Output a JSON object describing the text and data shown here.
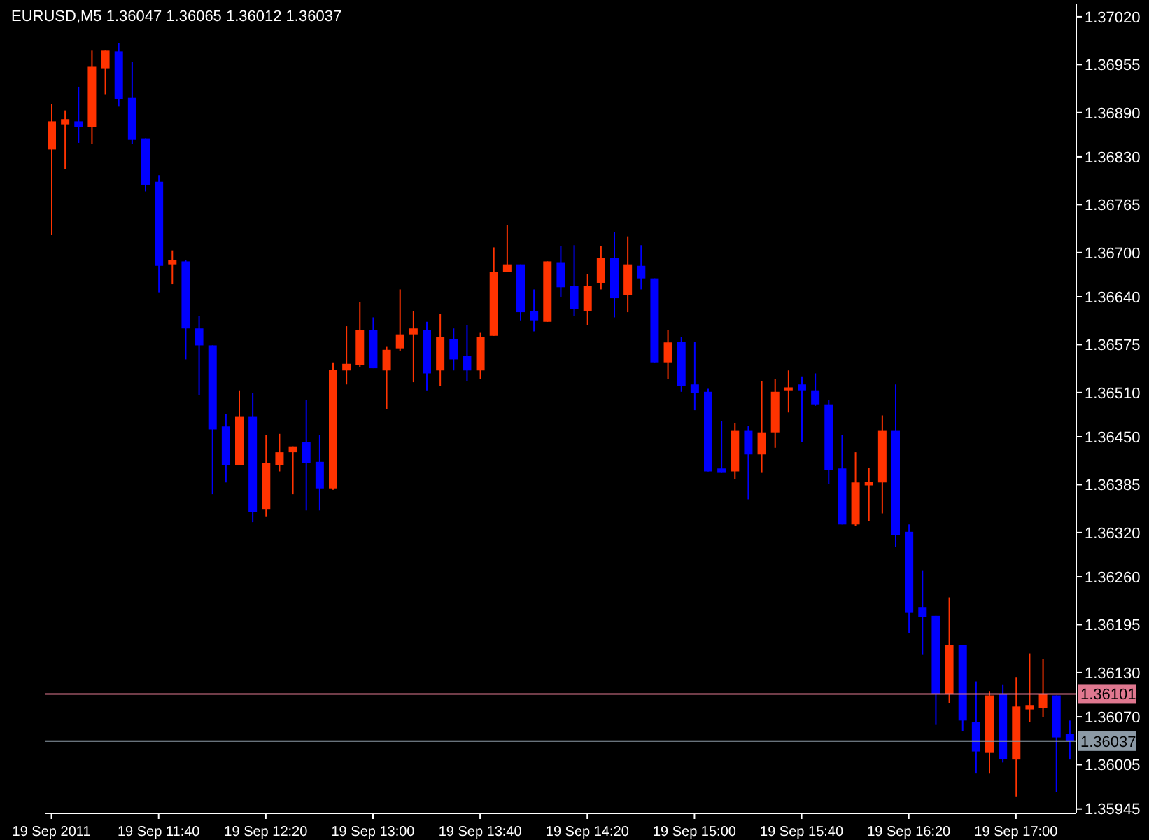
{
  "chart_data": {
    "type": "candlestick",
    "title": "EURUSD,M5 1.36047 1.36065 1.36012 1.36037",
    "categories": [
      "19 Sep 2011",
      null,
      null,
      null,
      null,
      null,
      null,
      null,
      "19 Sep 11:40",
      null,
      null,
      null,
      null,
      null,
      null,
      null,
      "19 Sep 12:20",
      null,
      null,
      null,
      null,
      null,
      null,
      null,
      "19 Sep 13:00",
      null,
      null,
      null,
      null,
      null,
      null,
      null,
      "19 Sep 13:40",
      null,
      null,
      null,
      null,
      null,
      null,
      null,
      "19 Sep 14:20",
      null,
      null,
      null,
      null,
      null,
      null,
      null,
      "19 Sep 15:00",
      null,
      null,
      null,
      null,
      null,
      null,
      null,
      "19 Sep 15:40",
      null,
      null,
      null,
      null,
      null,
      null,
      null,
      "19 Sep 16:20",
      null,
      null,
      null,
      null,
      null,
      null,
      null,
      "19 Sep 17:00",
      null,
      null,
      null,
      null
    ],
    "ohlc": [
      [
        1.3684,
        1.36902,
        1.36724,
        1.36878
      ],
      [
        1.36874,
        1.36893,
        1.36813,
        1.36881
      ],
      [
        1.36878,
        1.36925,
        1.36849,
        1.3687
      ],
      [
        1.3687,
        1.36974,
        1.36847,
        1.36952
      ],
      [
        1.3695,
        1.36974,
        1.36914,
        1.36974
      ],
      [
        1.36973,
        1.36984,
        1.36898,
        1.36908
      ],
      [
        1.3691,
        1.36959,
        1.36847,
        1.36853
      ],
      [
        1.36855,
        1.36855,
        1.36783,
        1.36792
      ],
      [
        1.36796,
        1.36805,
        1.36646,
        1.36682
      ],
      [
        1.36684,
        1.36703,
        1.36657,
        1.3669
      ],
      [
        1.36688,
        1.3669,
        1.36555,
        1.36597
      ],
      [
        1.36597,
        1.36614,
        1.36507,
        1.36574
      ],
      [
        1.36574,
        1.36574,
        1.36372,
        1.3646
      ],
      [
        1.36464,
        1.36481,
        1.36388,
        1.36412
      ],
      [
        1.36412,
        1.36513,
        1.36412,
        1.36477
      ],
      [
        1.36477,
        1.36509,
        1.36334,
        1.36348
      ],
      [
        1.36352,
        1.36452,
        1.36342,
        1.36414
      ],
      [
        1.36412,
        1.36454,
        1.36403,
        1.36429
      ],
      [
        1.36429,
        1.36437,
        1.36372,
        1.36437
      ],
      [
        1.36443,
        1.365,
        1.3635,
        1.36414
      ],
      [
        1.36416,
        1.36452,
        1.3635,
        1.3638
      ],
      [
        1.3638,
        1.36551,
        1.36378,
        1.36541
      ],
      [
        1.3654,
        1.366,
        1.36521,
        1.36549
      ],
      [
        1.36547,
        1.36633,
        1.36545,
        1.36595
      ],
      [
        1.36595,
        1.36612,
        1.36543,
        1.36543
      ],
      [
        1.3654,
        1.36572,
        1.36488,
        1.36568
      ],
      [
        1.3657,
        1.3665,
        1.36566,
        1.36589
      ],
      [
        1.36589,
        1.36621,
        1.36524,
        1.36597
      ],
      [
        1.36595,
        1.36606,
        1.36513,
        1.36536
      ],
      [
        1.3654,
        1.36617,
        1.36519,
        1.36585
      ],
      [
        1.36583,
        1.36597,
        1.3654,
        1.36555
      ],
      [
        1.3656,
        1.36602,
        1.36526,
        1.3654
      ],
      [
        1.3654,
        1.36591,
        1.36528,
        1.36585
      ],
      [
        1.36587,
        1.36707,
        1.36587,
        1.36674
      ],
      [
        1.36674,
        1.36737,
        1.36674,
        1.36684
      ],
      [
        1.36684,
        1.36684,
        1.36608,
        1.36619
      ],
      [
        1.36621,
        1.3665,
        1.36593,
        1.36608
      ],
      [
        1.36606,
        1.36688,
        1.36606,
        1.36688
      ],
      [
        1.36686,
        1.36709,
        1.3664,
        1.36653
      ],
      [
        1.36655,
        1.3671,
        1.36614,
        1.36623
      ],
      [
        1.36621,
        1.36671,
        1.36602,
        1.36655
      ],
      [
        1.36659,
        1.36709,
        1.3665,
        1.36693
      ],
      [
        1.36693,
        1.36728,
        1.36612,
        1.36638
      ],
      [
        1.36642,
        1.36722,
        1.36619,
        1.36684
      ],
      [
        1.36682,
        1.3671,
        1.3665,
        1.36665
      ],
      [
        1.36665,
        1.36665,
        1.36551,
        1.36551
      ],
      [
        1.36551,
        1.36595,
        1.36528,
        1.36578
      ],
      [
        1.36579,
        1.36585,
        1.36511,
        1.36519
      ],
      [
        1.36521,
        1.36579,
        1.36486,
        1.36509
      ],
      [
        1.36511,
        1.36515,
        1.36403,
        1.36403
      ],
      [
        1.36407,
        1.36471,
        1.36401,
        1.36401
      ],
      [
        1.36403,
        1.36469,
        1.36393,
        1.36458
      ],
      [
        1.36458,
        1.36465,
        1.36365,
        1.36426
      ],
      [
        1.36426,
        1.36526,
        1.36401,
        1.36456
      ],
      [
        1.36456,
        1.36528,
        1.36435,
        1.36511
      ],
      [
        1.36513,
        1.3654,
        1.36483,
        1.36517
      ],
      [
        1.36521,
        1.36532,
        1.36443,
        1.36513
      ],
      [
        1.36513,
        1.36536,
        1.36492,
        1.36494
      ],
      [
        1.36494,
        1.365,
        1.36386,
        1.36405
      ],
      [
        1.36407,
        1.36452,
        1.36331,
        1.36331
      ],
      [
        1.36331,
        1.36429,
        1.36329,
        1.36388
      ],
      [
        1.36384,
        1.36408,
        1.36336,
        1.36389
      ],
      [
        1.36388,
        1.36479,
        1.36346,
        1.36458
      ],
      [
        1.36458,
        1.36521,
        1.363,
        1.36317
      ],
      [
        1.36321,
        1.36331,
        1.36184,
        1.36211
      ],
      [
        1.36219,
        1.36268,
        1.36154,
        1.36205
      ],
      [
        1.36207,
        1.36207,
        1.36059,
        1.36101
      ],
      [
        1.36101,
        1.36232,
        1.36089,
        1.36167
      ],
      [
        1.36167,
        1.36167,
        1.36051,
        1.36065
      ],
      [
        1.36063,
        1.36118,
        1.35993,
        1.36023
      ],
      [
        1.36021,
        1.36105,
        1.35993,
        1.36099
      ],
      [
        1.36101,
        1.36114,
        1.36008,
        1.36013
      ],
      [
        1.36012,
        1.36124,
        1.35962,
        1.36084
      ],
      [
        1.3608,
        1.36156,
        1.36063,
        1.36086
      ],
      [
        1.36082,
        1.36148,
        1.3607,
        1.36101
      ],
      [
        1.36099,
        1.36099,
        1.35968,
        1.36042
      ],
      [
        1.36047,
        1.36065,
        1.36012,
        1.36037
      ]
    ],
    "colors": [
      "#ff3300",
      "#ff3300",
      "#0000ff",
      "#ff3300",
      "#ff3300",
      "#0000ff",
      "#0000ff",
      "#0000ff",
      "#0000ff",
      "#ff3300",
      "#0000ff",
      "#0000ff",
      "#0000ff",
      "#0000ff",
      "#ff3300",
      "#0000ff",
      "#ff3300",
      "#ff3300",
      "#ff3300",
      "#0000ff",
      "#0000ff",
      "#ff3300",
      "#ff3300",
      "#ff3300",
      "#0000ff",
      "#ff3300",
      "#ff3300",
      "#ff3300",
      "#0000ff",
      "#ff3300",
      "#0000ff",
      "#0000ff",
      "#ff3300",
      "#ff3300",
      "#ff3300",
      "#0000ff",
      "#0000ff",
      "#ff3300",
      "#0000ff",
      "#0000ff",
      "#ff3300",
      "#ff3300",
      "#0000ff",
      "#ff3300",
      "#0000ff",
      "#0000ff",
      "#ff3300",
      "#0000ff",
      "#0000ff",
      "#0000ff",
      "#0000ff",
      "#ff3300",
      "#0000ff",
      "#ff3300",
      "#ff3300",
      "#ff3300",
      "#0000ff",
      "#0000ff",
      "#0000ff",
      "#0000ff",
      "#ff3300",
      "#ff3300",
      "#ff3300",
      "#0000ff",
      "#0000ff",
      "#0000ff",
      "#0000ff",
      "#ff3300",
      "#0000ff",
      "#0000ff",
      "#ff3300",
      "#0000ff",
      "#ff3300",
      "#ff3300",
      "#ff3300",
      "#0000ff",
      "#0000ff"
    ],
    "ylim": [
      1.35939,
      1.37037
    ],
    "yticks": [
      {
        "value": 1.3702,
        "label": "1.37020"
      },
      1.36955,
      {
        "value": 1.3689,
        "label": "1.36890"
      },
      {
        "value": 1.3683,
        "label": "1.36830"
      },
      1.36765,
      {
        "value": 1.367,
        "label": "1.36700"
      },
      {
        "value": 1.3664,
        "label": "1.36640"
      },
      1.36575,
      {
        "value": 1.3651,
        "label": "1.36510"
      },
      {
        "value": 1.3645,
        "label": "1.36450"
      },
      1.36385,
      {
        "value": 1.3632,
        "label": "1.36320"
      },
      {
        "value": 1.3626,
        "label": "1.36260"
      },
      1.36195,
      {
        "value": 1.3613,
        "label": "1.36130"
      },
      {
        "value": 1.3607,
        "label": "1.36070"
      },
      1.36005,
      1.35945
    ],
    "ref_lines": [
      {
        "axis": "y",
        "value": 1.36101,
        "label": "1.36101",
        "color": "#e07890"
      },
      {
        "axis": "y",
        "value": 1.36037,
        "label": "1.36037",
        "color": "#8c9aa6"
      }
    ]
  }
}
